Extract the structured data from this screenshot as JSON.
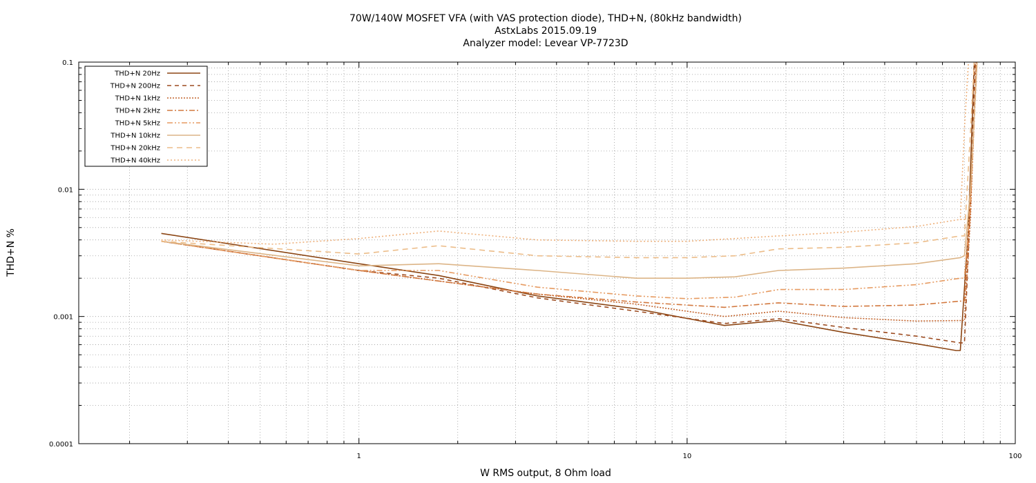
{
  "chart_data": {
    "type": "line",
    "title": [
      "70W/140W MOSFET VFA (with VAS protection diode), THD+N, (80kHz bandwidth)",
      "AstxLabs 2015.09.19",
      "Analyzer model: Levear VP-7723D"
    ],
    "xlabel": "W RMS output, 8 Ohm load",
    "ylabel": "THD+N %",
    "x_scale": "log",
    "y_scale": "log",
    "xlim": [
      0.14,
      100
    ],
    "ylim": [
      0.0001,
      0.1
    ],
    "x_tick_labels": [
      "1",
      "10",
      "100"
    ],
    "y_tick_labels": [
      "0.1",
      "0.01",
      "0.001",
      "0.0001"
    ],
    "grid": true,
    "legend_position": "top-left",
    "series": [
      {
        "name": "THD+N 20Hz",
        "color": "#8b4513",
        "dash": "",
        "x": [
          0.25,
          1,
          1.75,
          3.5,
          7,
          13,
          19,
          30,
          50,
          66
        ],
        "y": [
          0.0045,
          0.0026,
          0.0021,
          0.00145,
          0.00115,
          0.00085,
          0.00093,
          0.00075,
          0.00061,
          0.00054
        ]
      },
      {
        "name": "THD+N 200Hz",
        "color": "#9c4a1e",
        "dash": "6,5",
        "x": [
          0.25,
          1,
          1.75,
          3.5,
          7,
          13,
          19,
          30,
          50,
          68,
          70
        ],
        "y": [
          0.0039,
          0.0023,
          0.002,
          0.0014,
          0.0011,
          0.00088,
          0.00096,
          0.00082,
          0.0007,
          0.00062,
          0.00062
        ]
      },
      {
        "name": "THD+N 1kHz",
        "color": "#c2622a",
        "dash": "2,2",
        "x": [
          0.25,
          1,
          1.75,
          3.5,
          7,
          13,
          19,
          30,
          50,
          68,
          70
        ],
        "y": [
          0.0039,
          0.0023,
          0.0019,
          0.0015,
          0.00125,
          0.001,
          0.0011,
          0.00098,
          0.00092,
          0.00093,
          0.00093
        ]
      },
      {
        "name": "THD+N 2kHz",
        "color": "#d2783e",
        "dash": "8,3,2,3",
        "x": [
          0.25,
          1,
          1.75,
          3.5,
          7,
          13,
          19,
          30,
          50,
          68,
          70
        ],
        "y": [
          0.0039,
          0.0023,
          0.0019,
          0.0015,
          0.0013,
          0.00118,
          0.00128,
          0.0012,
          0.00123,
          0.00132,
          0.00132
        ]
      },
      {
        "name": "THD+N 5kHz",
        "color": "#e69a60",
        "dash": "8,3,2,3,2,3",
        "x": [
          0.25,
          1,
          1.75,
          3.5,
          7,
          10,
          14,
          19,
          30,
          50,
          68,
          70
        ],
        "y": [
          0.0039,
          0.0023,
          0.0023,
          0.0017,
          0.00145,
          0.00138,
          0.00142,
          0.00163,
          0.00163,
          0.00178,
          0.002,
          0.002
        ]
      },
      {
        "name": "THD+N 10kHz",
        "color": "#dcb486",
        "dash": "",
        "x": [
          0.25,
          1,
          1.75,
          3.5,
          7,
          10,
          14,
          19,
          30,
          50,
          68,
          70
        ],
        "y": [
          0.0039,
          0.0025,
          0.0026,
          0.0023,
          0.002,
          0.002,
          0.00205,
          0.0023,
          0.0024,
          0.0026,
          0.0029,
          0.003
        ]
      },
      {
        "name": "THD+N 20kHz",
        "color": "#ecbc88",
        "dash": "8,6",
        "x": [
          0.25,
          1,
          1.75,
          3.5,
          7,
          10,
          14,
          19,
          30,
          50,
          68,
          70
        ],
        "y": [
          0.0039,
          0.0031,
          0.0036,
          0.003,
          0.0029,
          0.0029,
          0.003,
          0.0034,
          0.0035,
          0.0038,
          0.0043,
          0.0043
        ]
      },
      {
        "name": "THD+N 40kHz",
        "color": "#eeb07a",
        "dash": "2,3",
        "x": [
          0.25,
          0.55,
          1,
          1.75,
          3.5,
          7,
          10,
          14,
          19,
          30,
          50,
          68,
          70
        ],
        "y": [
          0.004,
          0.0037,
          0.0041,
          0.0047,
          0.004,
          0.0039,
          0.0039,
          0.0041,
          0.0043,
          0.0046,
          0.0051,
          0.0058,
          0.0058
        ]
      }
    ],
    "clip_tail": [
      {
        "x": [
          68,
          72,
          75
        ],
        "y": [
          0.00054,
          0.005,
          0.1
        ]
      },
      {
        "x": [
          70,
          72.5,
          75.5
        ],
        "y": [
          0.00062,
          0.005,
          0.1
        ]
      },
      {
        "x": [
          70,
          73,
          76
        ],
        "y": [
          0.00093,
          0.006,
          0.1
        ]
      },
      {
        "x": [
          70,
          73,
          76
        ],
        "y": [
          0.00132,
          0.007,
          0.1
        ]
      },
      {
        "x": [
          70,
          73,
          76.5
        ],
        "y": [
          0.002,
          0.008,
          0.1
        ]
      },
      {
        "x": [
          70,
          73,
          76.5
        ],
        "y": [
          0.003,
          0.01,
          0.1
        ]
      },
      {
        "x": [
          70,
          72.5,
          75
        ],
        "y": [
          0.0043,
          0.02,
          0.1
        ]
      },
      {
        "x": [
          68,
          70,
          72
        ],
        "y": [
          0.0058,
          0.03,
          0.1
        ]
      }
    ]
  }
}
